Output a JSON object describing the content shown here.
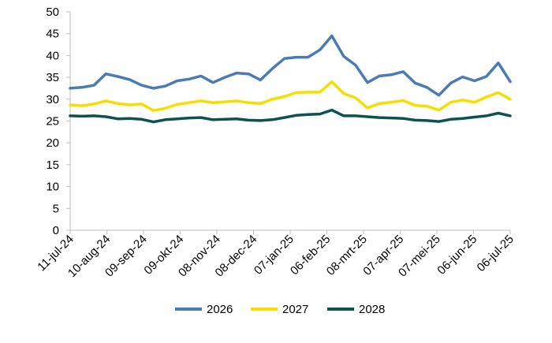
{
  "chart_data": {
    "type": "line",
    "title": "",
    "xlabel": "",
    "ylabel": "",
    "ylim": [
      0,
      50
    ],
    "y_ticks": [
      0,
      5,
      10,
      15,
      20,
      25,
      30,
      35,
      40,
      45,
      50
    ],
    "grid": false,
    "legend_position": "bottom",
    "x_tick_labels": [
      "11-jul-24",
      "10-aug-24",
      "09-sep-24",
      "09-okt-24",
      "08-nov-24",
      "08-dec-24",
      "07-jan-25",
      "06-feb-25",
      "08-mrt-25",
      "07-apr-25",
      "07-mei-25",
      "06-jun-25",
      "06-jul-25"
    ],
    "x": [
      "11-jul-24",
      "21-jul-24",
      "31-jul-24",
      "10-aug-24",
      "20-aug-24",
      "30-aug-24",
      "09-sep-24",
      "19-sep-24",
      "29-sep-24",
      "09-okt-24",
      "19-okt-24",
      "29-okt-24",
      "08-nov-24",
      "18-nov-24",
      "28-nov-24",
      "08-dec-24",
      "18-dec-24",
      "28-dec-24",
      "07-jan-25",
      "17-jan-25",
      "27-jan-25",
      "06-feb-25",
      "12-feb-25",
      "16-feb-25",
      "26-feb-25",
      "08-mrt-25",
      "18-mrt-25",
      "28-mrt-25",
      "07-apr-25",
      "17-apr-25",
      "27-apr-25",
      "07-mei-25",
      "17-mei-25",
      "27-mei-25",
      "06-jun-25",
      "16-jun-25",
      "26-jun-25",
      "06-jul-25"
    ],
    "series": [
      {
        "name": "2026",
        "color": "#4a7bb5",
        "values": [
          32.5,
          32.7,
          33.2,
          35.8,
          35.2,
          34.5,
          33.2,
          32.5,
          33.0,
          34.2,
          34.6,
          35.3,
          33.8,
          35.0,
          36.0,
          35.8,
          34.4,
          37.0,
          39.3,
          39.6,
          39.6,
          41.3,
          44.5,
          39.8,
          37.8,
          33.8,
          35.3,
          35.6,
          36.3,
          33.7,
          32.7,
          30.9,
          33.7,
          35.1,
          34.2,
          35.2,
          38.3,
          34.0
        ]
      },
      {
        "name": "2027",
        "color": "#f5de00",
        "values": [
          28.7,
          28.5,
          28.9,
          29.6,
          29.0,
          28.7,
          28.9,
          27.4,
          27.9,
          28.8,
          29.2,
          29.6,
          29.2,
          29.4,
          29.6,
          29.2,
          29.0,
          30.0,
          30.6,
          31.5,
          31.6,
          31.6,
          34.0,
          31.3,
          30.3,
          28.0,
          29.0,
          29.3,
          29.7,
          28.6,
          28.4,
          27.5,
          29.3,
          29.8,
          29.3,
          30.5,
          31.5,
          30.0
        ]
      },
      {
        "name": "2028",
        "color": "#0b5250",
        "values": [
          26.2,
          26.1,
          26.2,
          26.0,
          25.5,
          25.6,
          25.4,
          24.8,
          25.3,
          25.5,
          25.7,
          25.8,
          25.3,
          25.4,
          25.5,
          25.2,
          25.1,
          25.3,
          25.8,
          26.3,
          26.5,
          26.6,
          27.5,
          26.2,
          26.2,
          26.0,
          25.8,
          25.7,
          25.6,
          25.2,
          25.1,
          24.9,
          25.4,
          25.6,
          25.9,
          26.2,
          26.8,
          26.2
        ]
      }
    ]
  }
}
